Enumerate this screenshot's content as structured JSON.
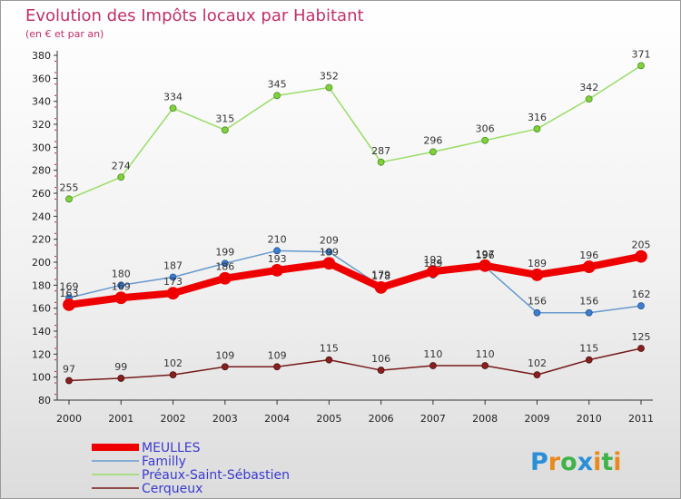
{
  "chart_data": {
    "type": "line",
    "title": "Evolution des Impôts locaux par Habitant",
    "subtitle": "(en € et par an)",
    "xlabel": "",
    "ylabel": "",
    "x": [
      "2000",
      "2001",
      "2002",
      "2003",
      "2004",
      "2005",
      "2006",
      "2007",
      "2008",
      "2009",
      "2010",
      "2011"
    ],
    "ylim": [
      80,
      380
    ],
    "yticks": [
      80,
      100,
      120,
      140,
      160,
      180,
      200,
      220,
      240,
      260,
      280,
      300,
      320,
      340,
      360,
      380
    ],
    "grid": false,
    "legend_position": "bottom-left",
    "series": [
      {
        "name": "MEULLES",
        "color": "#ee0000",
        "values": [
          163,
          169,
          173,
          186,
          193,
          199,
          178,
          192,
          197,
          189,
          196,
          205
        ]
      },
      {
        "name": "Familly",
        "color": "#6699cc",
        "values": [
          169,
          180,
          187,
          199,
          210,
          209,
          179,
          189,
          196,
          156,
          156,
          162
        ]
      },
      {
        "name": "Préaux-Saint-Sébastien",
        "color": "#99dd66",
        "values": [
          255,
          274,
          334,
          315,
          345,
          352,
          287,
          296,
          306,
          316,
          342,
          371
        ]
      },
      {
        "name": "Cerqueux",
        "color": "#771a1a",
        "values": [
          97,
          99,
          102,
          109,
          109,
          115,
          106,
          110,
          110,
          102,
          115,
          125
        ]
      }
    ]
  },
  "logo": {
    "text": "Proxiti"
  }
}
